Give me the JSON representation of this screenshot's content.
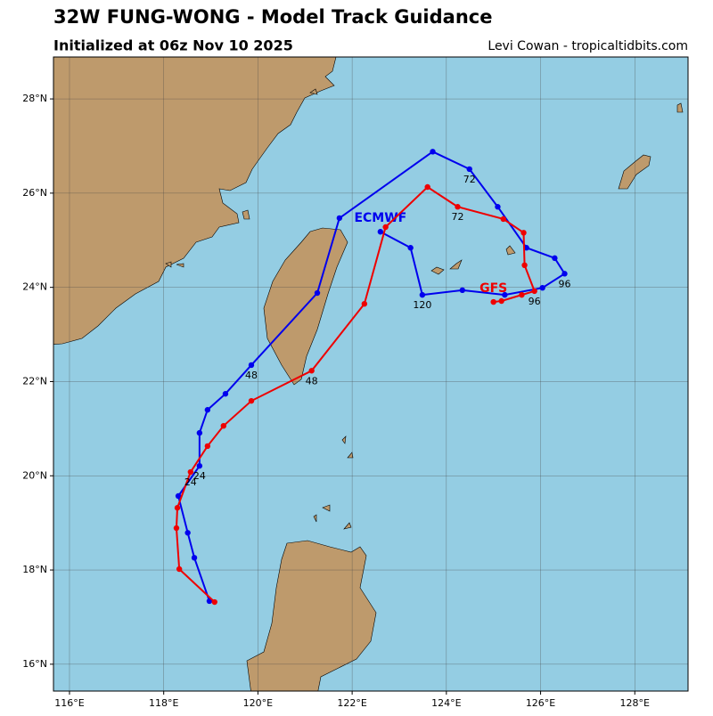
{
  "chart_data": {
    "type": "track-map",
    "title": "32W FUNG-WONG - Model Track Guidance",
    "subtitle": "Initialized at 06z Nov 10 2025",
    "credit": "Levi Cowan - tropicaltidbits.com",
    "xlim": [
      115.66,
      129.13
    ],
    "ylim": [
      15.43,
      28.89
    ],
    "xticks": [
      {
        "value": 116,
        "label": "116°E"
      },
      {
        "value": 118,
        "label": "118°E"
      },
      {
        "value": 120,
        "label": "120°E"
      },
      {
        "value": 122,
        "label": "122°E"
      },
      {
        "value": 124,
        "label": "124°E"
      },
      {
        "value": 126,
        "label": "126°E"
      },
      {
        "value": 128,
        "label": "128°E"
      }
    ],
    "yticks": [
      {
        "value": 16,
        "label": "16°N"
      },
      {
        "value": 18,
        "label": "18°N"
      },
      {
        "value": 20,
        "label": "20°N"
      },
      {
        "value": 22,
        "label": "22°N"
      },
      {
        "value": 24,
        "label": "24°N"
      },
      {
        "value": 26,
        "label": "26°N"
      },
      {
        "value": 28,
        "label": "28°N"
      }
    ],
    "grid": true,
    "series": [
      {
        "name": "ECMWF",
        "color": "#0000ee",
        "x": [
          118.97,
          118.65,
          118.51,
          118.31,
          118.76,
          118.76,
          118.93,
          119.31,
          119.86,
          121.26,
          121.73,
          123.71,
          124.49,
          125.09,
          125.7,
          126.3,
          126.51,
          126.04,
          125.24,
          124.34,
          123.49,
          123.24,
          122.6
        ],
        "values": [
          17.34,
          18.26,
          18.79,
          19.57,
          20.21,
          20.91,
          21.4,
          21.74,
          22.35,
          23.88,
          25.47,
          26.88,
          26.51,
          25.71,
          24.84,
          24.62,
          24.29,
          23.99,
          23.84,
          23.94,
          23.84,
          24.84,
          25.18
        ],
        "point_labels": [
          null,
          null,
          null,
          null,
          "24",
          null,
          null,
          null,
          "48",
          null,
          null,
          null,
          "72",
          null,
          null,
          null,
          "96",
          null,
          null,
          null,
          "120",
          null,
          null
        ]
      },
      {
        "name": "GFS",
        "color": "#ee0000",
        "x": [
          119.08,
          118.33,
          118.27,
          118.29,
          118.57,
          118.93,
          119.27,
          119.86,
          121.14,
          122.26,
          122.71,
          123.6,
          124.24,
          125.21,
          125.64,
          125.66,
          125.87,
          125.6,
          125.17,
          125.0
        ],
        "values": [
          17.32,
          18.02,
          18.89,
          19.32,
          20.08,
          20.63,
          21.06,
          21.59,
          22.23,
          23.65,
          25.28,
          26.13,
          25.71,
          25.45,
          25.16,
          24.47,
          23.92,
          23.84,
          23.71,
          23.69
        ],
        "point_labels": [
          null,
          null,
          null,
          null,
          "24",
          null,
          null,
          null,
          "48",
          null,
          null,
          null,
          "72",
          null,
          null,
          null,
          "96",
          null,
          null,
          null
        ]
      }
    ]
  }
}
